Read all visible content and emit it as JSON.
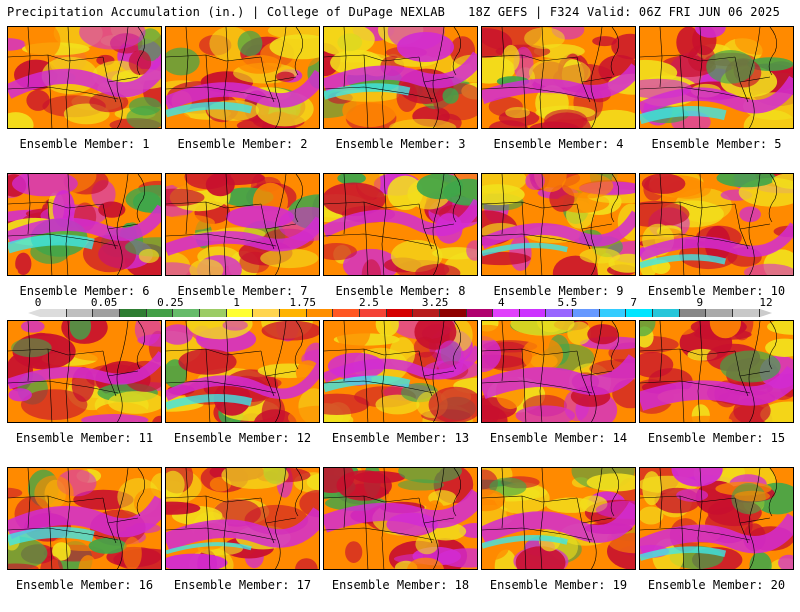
{
  "header": {
    "left": "Precipitation Accumulation (in.) | College of DuPage NEXLAB",
    "right": "18Z GEFS | F324 Valid: 06Z FRI JUN 06 2025"
  },
  "members": [
    {
      "label": "Ensemble Member: 1"
    },
    {
      "label": "Ensemble Member: 2"
    },
    {
      "label": "Ensemble Member: 3"
    },
    {
      "label": "Ensemble Member: 4"
    },
    {
      "label": "Ensemble Member: 5"
    },
    {
      "label": "Ensemble Member: 6"
    },
    {
      "label": "Ensemble Member: 7"
    },
    {
      "label": "Ensemble Member: 8"
    },
    {
      "label": "Ensemble Member: 9"
    },
    {
      "label": "Ensemble Member: 10"
    },
    {
      "label": "Ensemble Member: 11"
    },
    {
      "label": "Ensemble Member: 12"
    },
    {
      "label": "Ensemble Member: 13"
    },
    {
      "label": "Ensemble Member: 14"
    },
    {
      "label": "Ensemble Member: 15"
    },
    {
      "label": "Ensemble Member: 16"
    },
    {
      "label": "Ensemble Member: 17"
    },
    {
      "label": "Ensemble Member: 18"
    },
    {
      "label": "Ensemble Member: 19"
    },
    {
      "label": "Ensemble Member: 20"
    }
  ],
  "colorbar": {
    "tick_labels": [
      "0",
      "0.05",
      "0.25",
      "1",
      "1.75",
      "2.5",
      "3.25",
      "4",
      "5.5",
      "7",
      "9",
      "12"
    ],
    "colors": [
      "#dcdcdc",
      "#bfbfbf",
      "#a0a0a0",
      "#2e7d32",
      "#43a047",
      "#66bb6a",
      "#9ccc65",
      "#ffff33",
      "#ffd54f",
      "#ffb300",
      "#ff8f00",
      "#ff5722",
      "#f44336",
      "#d50000",
      "#b71c1c",
      "#8e0000",
      "#b0006e",
      "#e040fb",
      "#cc33ff",
      "#9966ff",
      "#6699ff",
      "#33ccff",
      "#00e5ff",
      "#26c6da",
      "#888888",
      "#aaaaaa",
      "#c8c8c8"
    ]
  },
  "style": {
    "heavy": "#c8102e",
    "moderate": "#ff8a00",
    "light": "#f2e01c",
    "green": "#3fa64a",
    "magenta": "#d22bd2",
    "cyan": "#3ee6e6",
    "border": "#000000"
  }
}
